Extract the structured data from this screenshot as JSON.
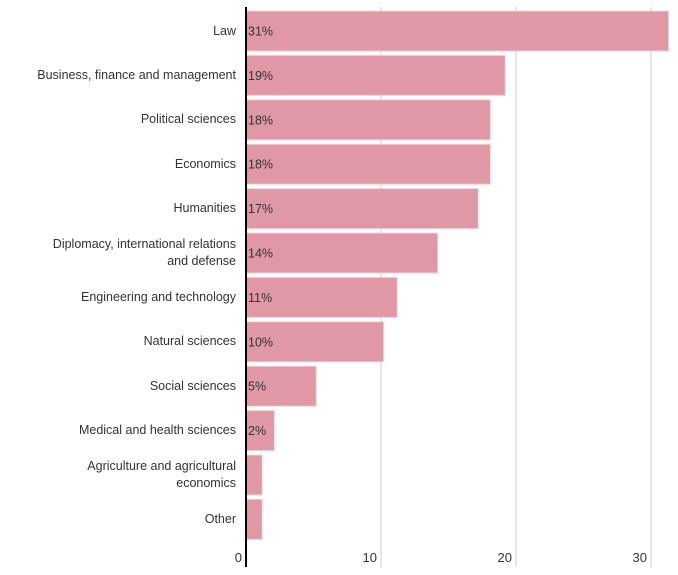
{
  "chart_data": {
    "type": "bar",
    "orientation": "horizontal",
    "categories": [
      "Law",
      "Business, finance and management",
      "Political sciences",
      "Economics",
      "Humanities",
      "Diplomacy, international relations and defense",
      "Engineering and technology",
      "Natural sciences",
      "Social sciences",
      "Medical and health sciences",
      "Agriculture and agricultural economics",
      "Other"
    ],
    "category_lines": [
      [
        "Law"
      ],
      [
        "Business, finance and management"
      ],
      [
        "Political sciences"
      ],
      [
        "Economics"
      ],
      [
        "Humanities"
      ],
      [
        "Diplomacy, international relations",
        "and defense"
      ],
      [
        "Engineering and technology"
      ],
      [
        "Natural sciences"
      ],
      [
        "Social sciences"
      ],
      [
        "Medical and health sciences"
      ],
      [
        "Agriculture and agricultural",
        "economics"
      ],
      [
        "Other"
      ]
    ],
    "values": [
      31.3,
      19.2,
      18.1,
      18.1,
      17.2,
      14.2,
      11.2,
      10.2,
      5.2,
      2.1,
      1.2,
      1.2
    ],
    "data_labels": [
      "31%",
      "19%",
      "18%",
      "18%",
      "17%",
      "14%",
      "11%",
      "10%",
      "5%",
      "2%",
      "",
      ""
    ],
    "xlim": [
      0,
      31.5
    ],
    "xticks": [
      0,
      10,
      20,
      30
    ],
    "xtick_labels": [
      "0",
      "10",
      "20",
      "30"
    ],
    "grid": true,
    "title": "",
    "xlabel": "",
    "ylabel": "",
    "colors": {
      "bar": "#e097a6",
      "bar_edge": "#f3d2d9",
      "axis": "#000000",
      "grid": "#cccccc",
      "text": "#333333"
    }
  }
}
